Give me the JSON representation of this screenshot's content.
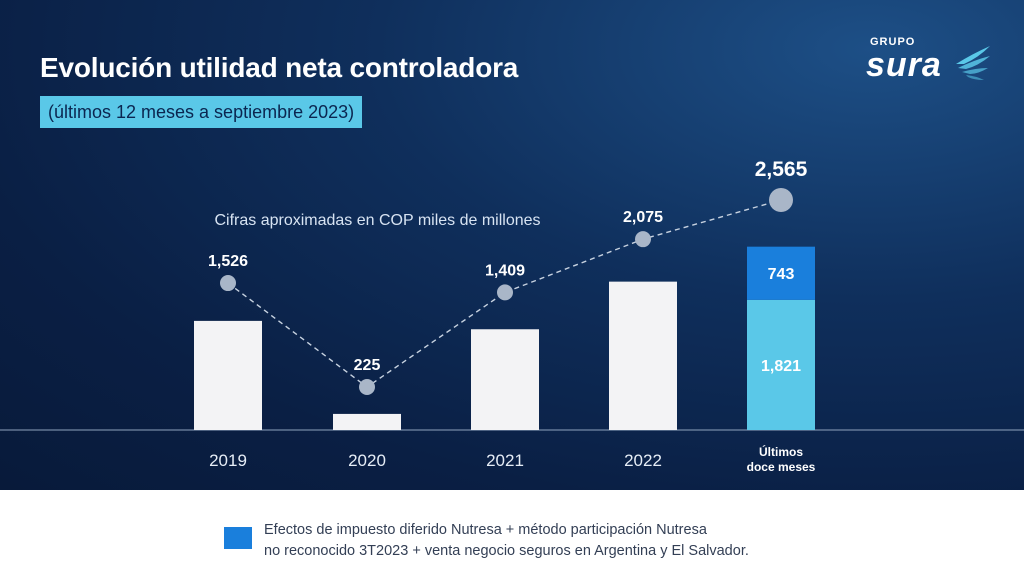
{
  "header": {
    "title": "Evolución utilidad neta controladora",
    "subtitle": "(últimos 12 meses a septiembre 2023)",
    "logo_top": "GRUPO",
    "logo_main": "sura"
  },
  "colors": {
    "bar": "#f3f3f5",
    "stack_base": "#5ac8e8",
    "stack_top": "#1a7fdc",
    "marker": "#a9b6c8",
    "axis": "#8fa3bd"
  },
  "chart_data": {
    "type": "bar",
    "note": "Cifras aproximadas en COP miles de millones",
    "categories": [
      "2019",
      "2020",
      "2021",
      "2022",
      "Últimos doce meses"
    ],
    "values": [
      1526,
      225,
      1409,
      2075,
      2565
    ],
    "value_labels": [
      "1,526",
      "225",
      "1,409",
      "2,075",
      "2,565"
    ],
    "stack": {
      "category": "Últimos doce meses",
      "segments": [
        {
          "value": 1821,
          "label": "1,821",
          "color": "#5ac8e8"
        },
        {
          "value": 743,
          "label": "743",
          "color": "#1a7fdc"
        }
      ]
    },
    "line": {
      "style": "dashed",
      "values": [
        1526,
        225,
        1409,
        2075,
        2565
      ]
    },
    "ylim": [
      0,
      2565
    ]
  },
  "legend": {
    "line1": "Efectos de impuesto diferido Nutresa + método participación Nutresa",
    "line2": "no reconocido 3T2023 + venta negocio seguros en Argentina y El Salvador."
  }
}
